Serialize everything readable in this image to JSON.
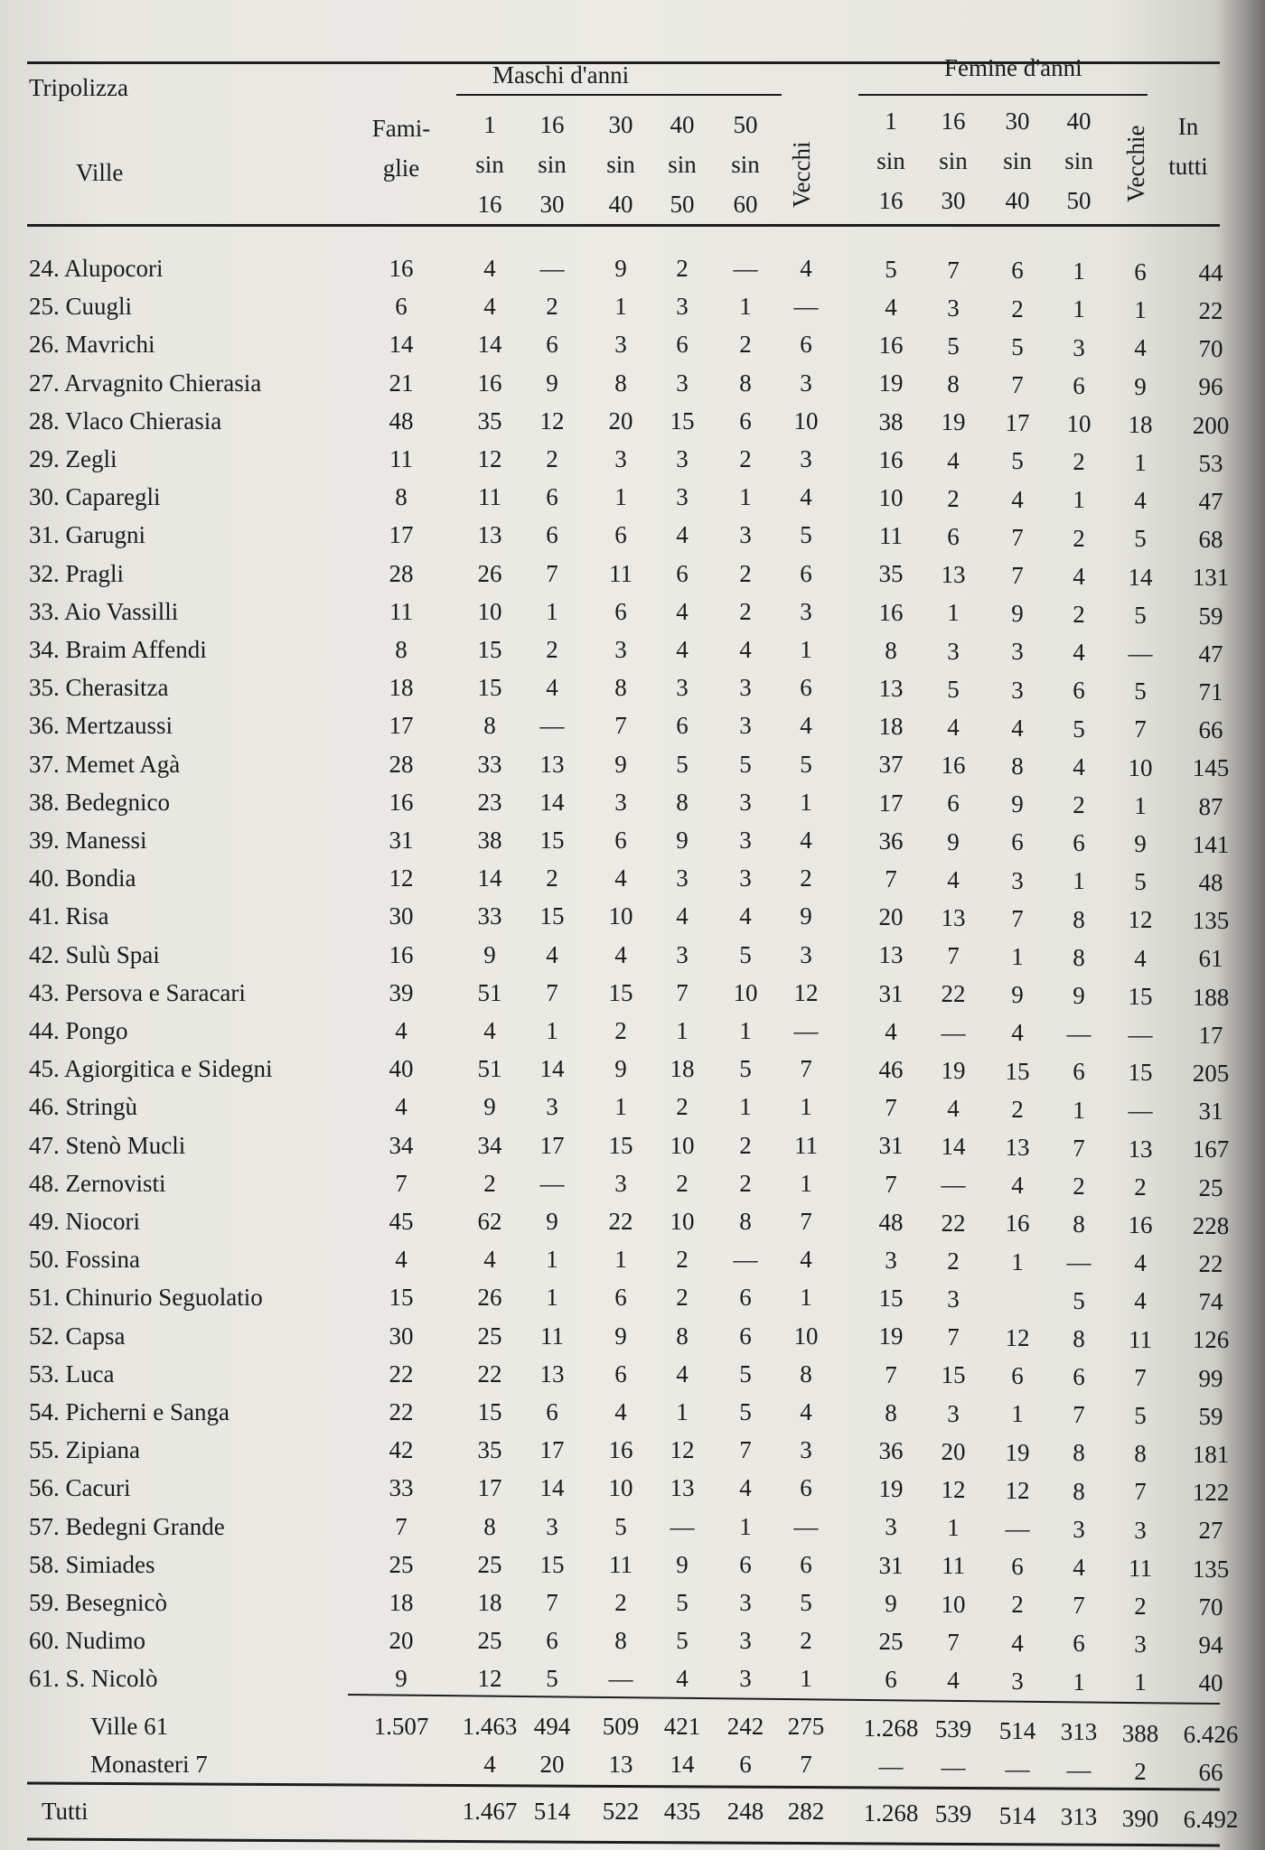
{
  "header": {
    "region": "Tripolizza",
    "males_group": "Maschi d'anni",
    "females_group": "Femine d'anni",
    "villages": "Ville",
    "families": [
      "Fami-",
      "glie"
    ],
    "male_ages": [
      [
        "1",
        "sin",
        "16"
      ],
      [
        "16",
        "sin",
        "30"
      ],
      [
        "30",
        "sin",
        "40"
      ],
      [
        "40",
        "sin",
        "50"
      ],
      [
        "50",
        "sin",
        "60"
      ]
    ],
    "male_old": "Vecchi",
    "female_ages": [
      [
        "1",
        "sin",
        "16"
      ],
      [
        "16",
        "sin",
        "30"
      ],
      [
        "30",
        "sin",
        "40"
      ],
      [
        "40",
        "sin",
        "50"
      ]
    ],
    "female_old": "Vecchie",
    "total": [
      "In",
      "tutti"
    ]
  },
  "rows": [
    {
      "name": "24. Alupocori",
      "v": [
        "16",
        "4",
        "—",
        "9",
        "2",
        "—",
        "4",
        "5",
        "7",
        "6",
        "1",
        "6",
        "44"
      ]
    },
    {
      "name": "25. Cuugli",
      "v": [
        "6",
        "4",
        "2",
        "1",
        "3",
        "1",
        "—",
        "4",
        "3",
        "2",
        "1",
        "1",
        "22"
      ]
    },
    {
      "name": "26. Mavrichi",
      "v": [
        "14",
        "14",
        "6",
        "3",
        "6",
        "2",
        "6",
        "16",
        "5",
        "5",
        "3",
        "4",
        "70"
      ]
    },
    {
      "name": "27. Arvagnito Chierasia",
      "v": [
        "21",
        "16",
        "9",
        "8",
        "3",
        "8",
        "3",
        "19",
        "8",
        "7",
        "6",
        "9",
        "96"
      ]
    },
    {
      "name": "28. Vlaco Chierasia",
      "v": [
        "48",
        "35",
        "12",
        "20",
        "15",
        "6",
        "10",
        "38",
        "19",
        "17",
        "10",
        "18",
        "200"
      ]
    },
    {
      "name": "29. Zegli",
      "v": [
        "11",
        "12",
        "2",
        "3",
        "3",
        "2",
        "3",
        "16",
        "4",
        "5",
        "2",
        "1",
        "53"
      ]
    },
    {
      "name": "30. Caparegli",
      "v": [
        "8",
        "11",
        "6",
        "1",
        "3",
        "1",
        "4",
        "10",
        "2",
        "4",
        "1",
        "4",
        "47"
      ]
    },
    {
      "name": "31. Garugni",
      "v": [
        "17",
        "13",
        "6",
        "6",
        "4",
        "3",
        "5",
        "11",
        "6",
        "7",
        "2",
        "5",
        "68"
      ]
    },
    {
      "name": "32. Pragli",
      "v": [
        "28",
        "26",
        "7",
        "11",
        "6",
        "2",
        "6",
        "35",
        "13",
        "7",
        "4",
        "14",
        "131"
      ]
    },
    {
      "name": "33. Aio Vassilli",
      "v": [
        "11",
        "10",
        "1",
        "6",
        "4",
        "2",
        "3",
        "16",
        "1",
        "9",
        "2",
        "5",
        "59"
      ]
    },
    {
      "name": "34. Braim Affendi",
      "v": [
        "8",
        "15",
        "2",
        "3",
        "4",
        "4",
        "1",
        "8",
        "3",
        "3",
        "4",
        "—",
        "47"
      ]
    },
    {
      "name": "35. Cherasitza",
      "v": [
        "18",
        "15",
        "4",
        "8",
        "3",
        "3",
        "6",
        "13",
        "5",
        "3",
        "6",
        "5",
        "71"
      ]
    },
    {
      "name": "36. Mertzaussi",
      "v": [
        "17",
        "8",
        "—",
        "7",
        "6",
        "3",
        "4",
        "18",
        "4",
        "4",
        "5",
        "7",
        "66"
      ]
    },
    {
      "name": "37. Memet Agà",
      "v": [
        "28",
        "33",
        "13",
        "9",
        "5",
        "5",
        "5",
        "37",
        "16",
        "8",
        "4",
        "10",
        "145"
      ]
    },
    {
      "name": "38. Bedegnico",
      "v": [
        "16",
        "23",
        "14",
        "3",
        "8",
        "3",
        "1",
        "17",
        "6",
        "9",
        "2",
        "1",
        "87"
      ]
    },
    {
      "name": "39. Manessi",
      "v": [
        "31",
        "38",
        "15",
        "6",
        "9",
        "3",
        "4",
        "36",
        "9",
        "6",
        "6",
        "9",
        "141"
      ]
    },
    {
      "name": "40. Bondia",
      "v": [
        "12",
        "14",
        "2",
        "4",
        "3",
        "3",
        "2",
        "7",
        "4",
        "3",
        "1",
        "5",
        "48"
      ]
    },
    {
      "name": "41. Risa",
      "v": [
        "30",
        "33",
        "15",
        "10",
        "4",
        "4",
        "9",
        "20",
        "13",
        "7",
        "8",
        "12",
        "135"
      ]
    },
    {
      "name": "42. Sulù Spai",
      "v": [
        "16",
        "9",
        "4",
        "4",
        "3",
        "5",
        "3",
        "13",
        "7",
        "1",
        "8",
        "4",
        "61"
      ]
    },
    {
      "name": "43. Persova e Saracari",
      "v": [
        "39",
        "51",
        "7",
        "15",
        "7",
        "10",
        "12",
        "31",
        "22",
        "9",
        "9",
        "15",
        "188"
      ]
    },
    {
      "name": "44. Pongo",
      "v": [
        "4",
        "4",
        "1",
        "2",
        "1",
        "1",
        "—",
        "4",
        "—",
        "4",
        "—",
        "—",
        "17"
      ]
    },
    {
      "name": "45. Agiorgitica e Sidegni",
      "v": [
        "40",
        "51",
        "14",
        "9",
        "18",
        "5",
        "7",
        "46",
        "19",
        "15",
        "6",
        "15",
        "205"
      ]
    },
    {
      "name": "46. Stringù",
      "v": [
        "4",
        "9",
        "3",
        "1",
        "2",
        "1",
        "1",
        "7",
        "4",
        "2",
        "1",
        "—",
        "31"
      ]
    },
    {
      "name": "47. Stenò Mucli",
      "v": [
        "34",
        "34",
        "17",
        "15",
        "10",
        "2",
        "11",
        "31",
        "14",
        "13",
        "7",
        "13",
        "167"
      ]
    },
    {
      "name": "48. Zernovisti",
      "v": [
        "7",
        "2",
        "—",
        "3",
        "2",
        "2",
        "1",
        "7",
        "—",
        "4",
        "2",
        "2",
        "25"
      ]
    },
    {
      "name": "49. Niocori",
      "v": [
        "45",
        "62",
        "9",
        "22",
        "10",
        "8",
        "7",
        "48",
        "22",
        "16",
        "8",
        "16",
        "228"
      ]
    },
    {
      "name": "50. Fossina",
      "v": [
        "4",
        "4",
        "1",
        "1",
        "2",
        "—",
        "4",
        "3",
        "2",
        "1",
        "—",
        "4",
        "22"
      ]
    },
    {
      "name": "51. Chinurio Seguolatio",
      "v": [
        "15",
        "26",
        "1",
        "6",
        "2",
        "6",
        "1",
        "15",
        "3",
        "",
        "5",
        "4",
        "74"
      ]
    },
    {
      "name": "52. Capsa",
      "v": [
        "30",
        "25",
        "11",
        "9",
        "8",
        "6",
        "10",
        "19",
        "7",
        "12",
        "8",
        "11",
        "126"
      ]
    },
    {
      "name": "53. Luca",
      "v": [
        "22",
        "22",
        "13",
        "6",
        "4",
        "5",
        "8",
        "7",
        "15",
        "6",
        "6",
        "7",
        "99"
      ]
    },
    {
      "name": "54. Picherni e Sanga",
      "v": [
        "22",
        "15",
        "6",
        "4",
        "1",
        "5",
        "4",
        "8",
        "3",
        "1",
        "7",
        "5",
        "59"
      ]
    },
    {
      "name": "55. Zipiana",
      "v": [
        "42",
        "35",
        "17",
        "16",
        "12",
        "7",
        "3",
        "36",
        "20",
        "19",
        "8",
        "8",
        "181"
      ]
    },
    {
      "name": "56. Cacuri",
      "v": [
        "33",
        "17",
        "14",
        "10",
        "13",
        "4",
        "6",
        "19",
        "12",
        "12",
        "8",
        "7",
        "122"
      ]
    },
    {
      "name": "57. Bedegni Grande",
      "v": [
        "7",
        "8",
        "3",
        "5",
        "—",
        "1",
        "—",
        "3",
        "1",
        "—",
        "3",
        "3",
        "27"
      ]
    },
    {
      "name": "58. Simiades",
      "v": [
        "25",
        "25",
        "15",
        "11",
        "9",
        "6",
        "6",
        "31",
        "11",
        "6",
        "4",
        "11",
        "135"
      ]
    },
    {
      "name": "59. Besegnicò",
      "v": [
        "18",
        "18",
        "7",
        "2",
        "5",
        "3",
        "5",
        "9",
        "10",
        "2",
        "7",
        "2",
        "70"
      ]
    },
    {
      "name": "60. Nudimo",
      "v": [
        "20",
        "25",
        "6",
        "8",
        "5",
        "3",
        "2",
        "25",
        "7",
        "4",
        "6",
        "3",
        "94"
      ]
    },
    {
      "name": "61. S. Nicolò",
      "v": [
        "9",
        "12",
        "5",
        "—",
        "4",
        "3",
        "1",
        "6",
        "4",
        "3",
        "1",
        "1",
        "40"
      ]
    }
  ],
  "totals": [
    {
      "name": "Ville 61",
      "v": [
        "1.507",
        "1.463",
        "494",
        "509",
        "421",
        "242",
        "275",
        "1.268",
        "539",
        "514",
        "313",
        "388",
        "6.426"
      ]
    },
    {
      "name": "Monasteri 7",
      "v": [
        "",
        "4",
        "20",
        "13",
        "14",
        "6",
        "7",
        "—",
        "—",
        "—",
        "—",
        "2",
        "66"
      ]
    }
  ],
  "grand_total": {
    "name": "Tutti",
    "v": [
      "",
      "1.467",
      "514",
      "522",
      "435",
      "248",
      "282",
      "1.268",
      "539",
      "514",
      "313",
      "390",
      "6.492"
    ]
  }
}
